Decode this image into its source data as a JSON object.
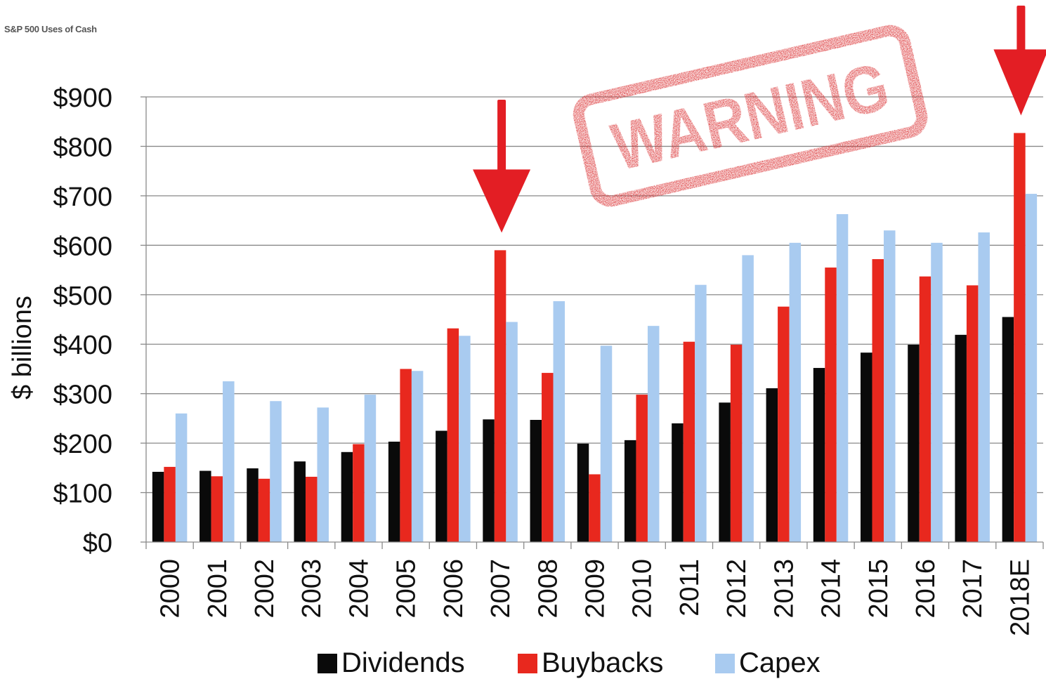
{
  "title": "S&P 500 Uses of Cash",
  "stamp_text": "WARNING",
  "colors": {
    "dividends": "#0a0a0a",
    "buybacks": "#e8281e",
    "capex": "#a9cbf0",
    "arrow": "#e31e24",
    "stamp": "#d9282a"
  },
  "chart_data": {
    "type": "bar",
    "title": "S&P 500 Uses of Cash",
    "xlabel": "",
    "ylabel": "$ billions",
    "ylim": [
      0,
      900
    ],
    "yticks": [
      "$0",
      "$100",
      "$200",
      "$300",
      "$400",
      "$500",
      "$600",
      "$700",
      "$800",
      "$900"
    ],
    "categories": [
      "2000",
      "2001",
      "2002",
      "2003",
      "2004",
      "2005",
      "2006",
      "2007",
      "2008",
      "2009",
      "2010",
      "2011",
      "2012",
      "2013",
      "2014",
      "2015",
      "2016",
      "2017",
      "2018E"
    ],
    "series": [
      {
        "name": "Dividends",
        "color": "#0a0a0a",
        "values": [
          142,
          144,
          149,
          163,
          182,
          203,
          225,
          248,
          247,
          199,
          206,
          240,
          282,
          311,
          352,
          383,
          399,
          419,
          455
        ]
      },
      {
        "name": "Buybacks",
        "color": "#e8281e",
        "values": [
          152,
          133,
          128,
          132,
          198,
          350,
          432,
          590,
          342,
          137,
          298,
          405,
          399,
          476,
          555,
          572,
          537,
          519,
          827
        ]
      },
      {
        "name": "Capex",
        "color": "#a9cbf0",
        "values": [
          260,
          325,
          285,
          272,
          298,
          346,
          417,
          445,
          487,
          397,
          437,
          520,
          580,
          605,
          663,
          630,
          605,
          626,
          704
        ]
      }
    ],
    "grid": true,
    "legend_position": "bottom",
    "annotations": [
      {
        "type": "arrow",
        "category": "2007"
      },
      {
        "type": "arrow",
        "category": "2018E"
      },
      {
        "type": "stamp",
        "text": "WARNING"
      }
    ]
  }
}
